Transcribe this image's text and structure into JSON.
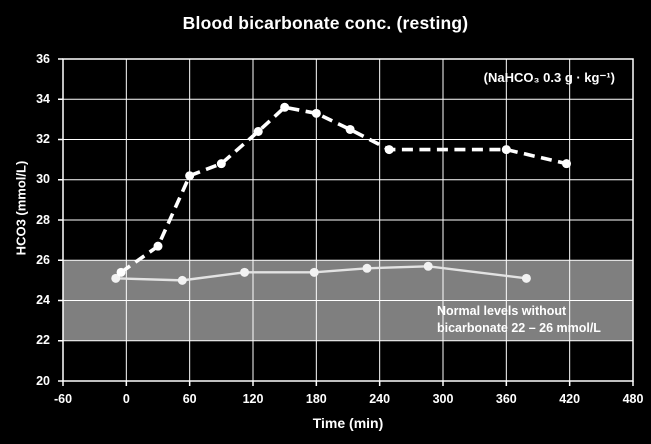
{
  "chart_data": {
    "type": "line",
    "title": "Blood bicarbonate conc. (resting)",
    "xlabel": "Time (min)",
    "ylabel": "HCO3 (mmol/L)",
    "xlim": [
      -60,
      480
    ],
    "ylim": [
      20,
      36
    ],
    "xticks": [
      -60,
      0,
      60,
      120,
      180,
      240,
      300,
      360,
      420,
      480
    ],
    "yticks": [
      20,
      22,
      24,
      26,
      28,
      30,
      32,
      34,
      36
    ],
    "grid": true,
    "background_color": "#000000",
    "grid_color": "#ffffff",
    "text_color": "#ffffff",
    "annotation": "(NaHCO₃ 0.3 g · kg⁻¹)",
    "normal_band": {
      "from": 22,
      "to": 26,
      "color": "#7f7f7f",
      "label_line1": "Normal levels without",
      "label_line2": "bicarbonate 22 – 26 mmol/L"
    },
    "series": [
      {
        "id": "control-normal",
        "style": "solid",
        "color": "#e3e3e3",
        "marker_color": "#f2f2f2",
        "x": [
          -10,
          53,
          112,
          178,
          228,
          286,
          379
        ],
        "y": [
          25.1,
          25.0,
          25.4,
          25.4,
          25.6,
          25.7,
          25.1
        ]
      },
      {
        "id": "bicarbonate",
        "style": "dashed",
        "color": "#ffffff",
        "marker_color": "#ffffff",
        "x": [
          -5,
          30,
          60,
          90,
          125,
          150,
          180,
          212,
          249,
          360,
          417
        ],
        "y": [
          25.4,
          26.7,
          30.2,
          30.8,
          32.4,
          33.6,
          33.3,
          32.5,
          31.5,
          31.5,
          30.8
        ]
      }
    ]
  }
}
